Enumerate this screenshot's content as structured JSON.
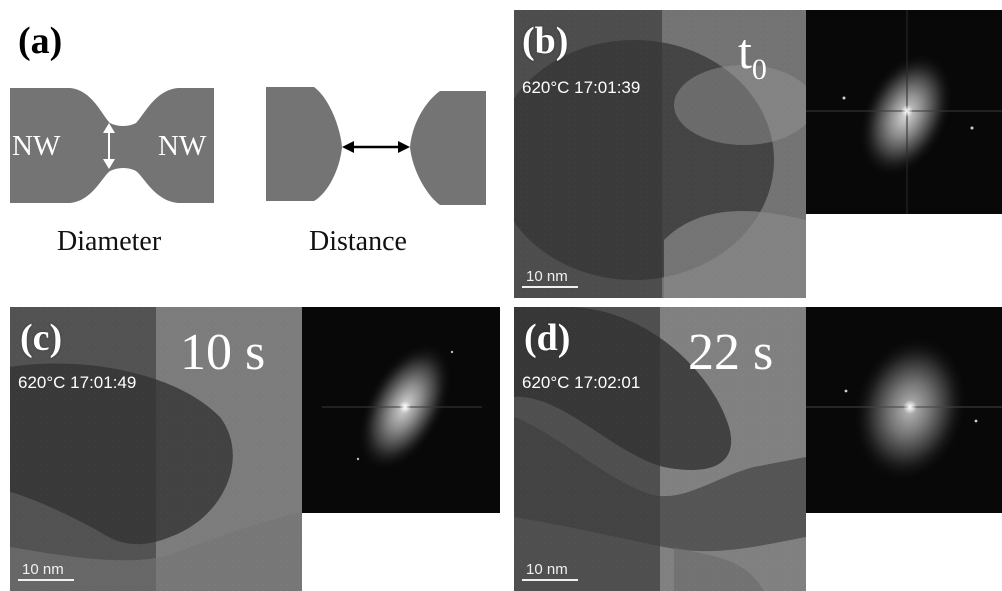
{
  "panels": {
    "a": {
      "letter": "(a)",
      "nw_left": "NW",
      "nw_right": "NW",
      "caption_diameter": "Diameter",
      "caption_distance": "Distance"
    },
    "b": {
      "letter": "(b)",
      "temperature_time": "620°C   17:01:39",
      "time_label": "t",
      "time_subscript": "0",
      "scale_bar": "10 nm"
    },
    "c": {
      "letter": "(c)",
      "temperature_time": "620°C   17:01:49",
      "time_label": "10 s",
      "scale_bar": "10 nm"
    },
    "d": {
      "letter": "(d)",
      "temperature_time": "620°C   17:02:01",
      "time_label": "22 s",
      "scale_bar": "10 nm"
    }
  },
  "colors": {
    "schematic_gray": "#747474",
    "arrow_white": "#ffffff",
    "arrow_black": "#000000"
  }
}
